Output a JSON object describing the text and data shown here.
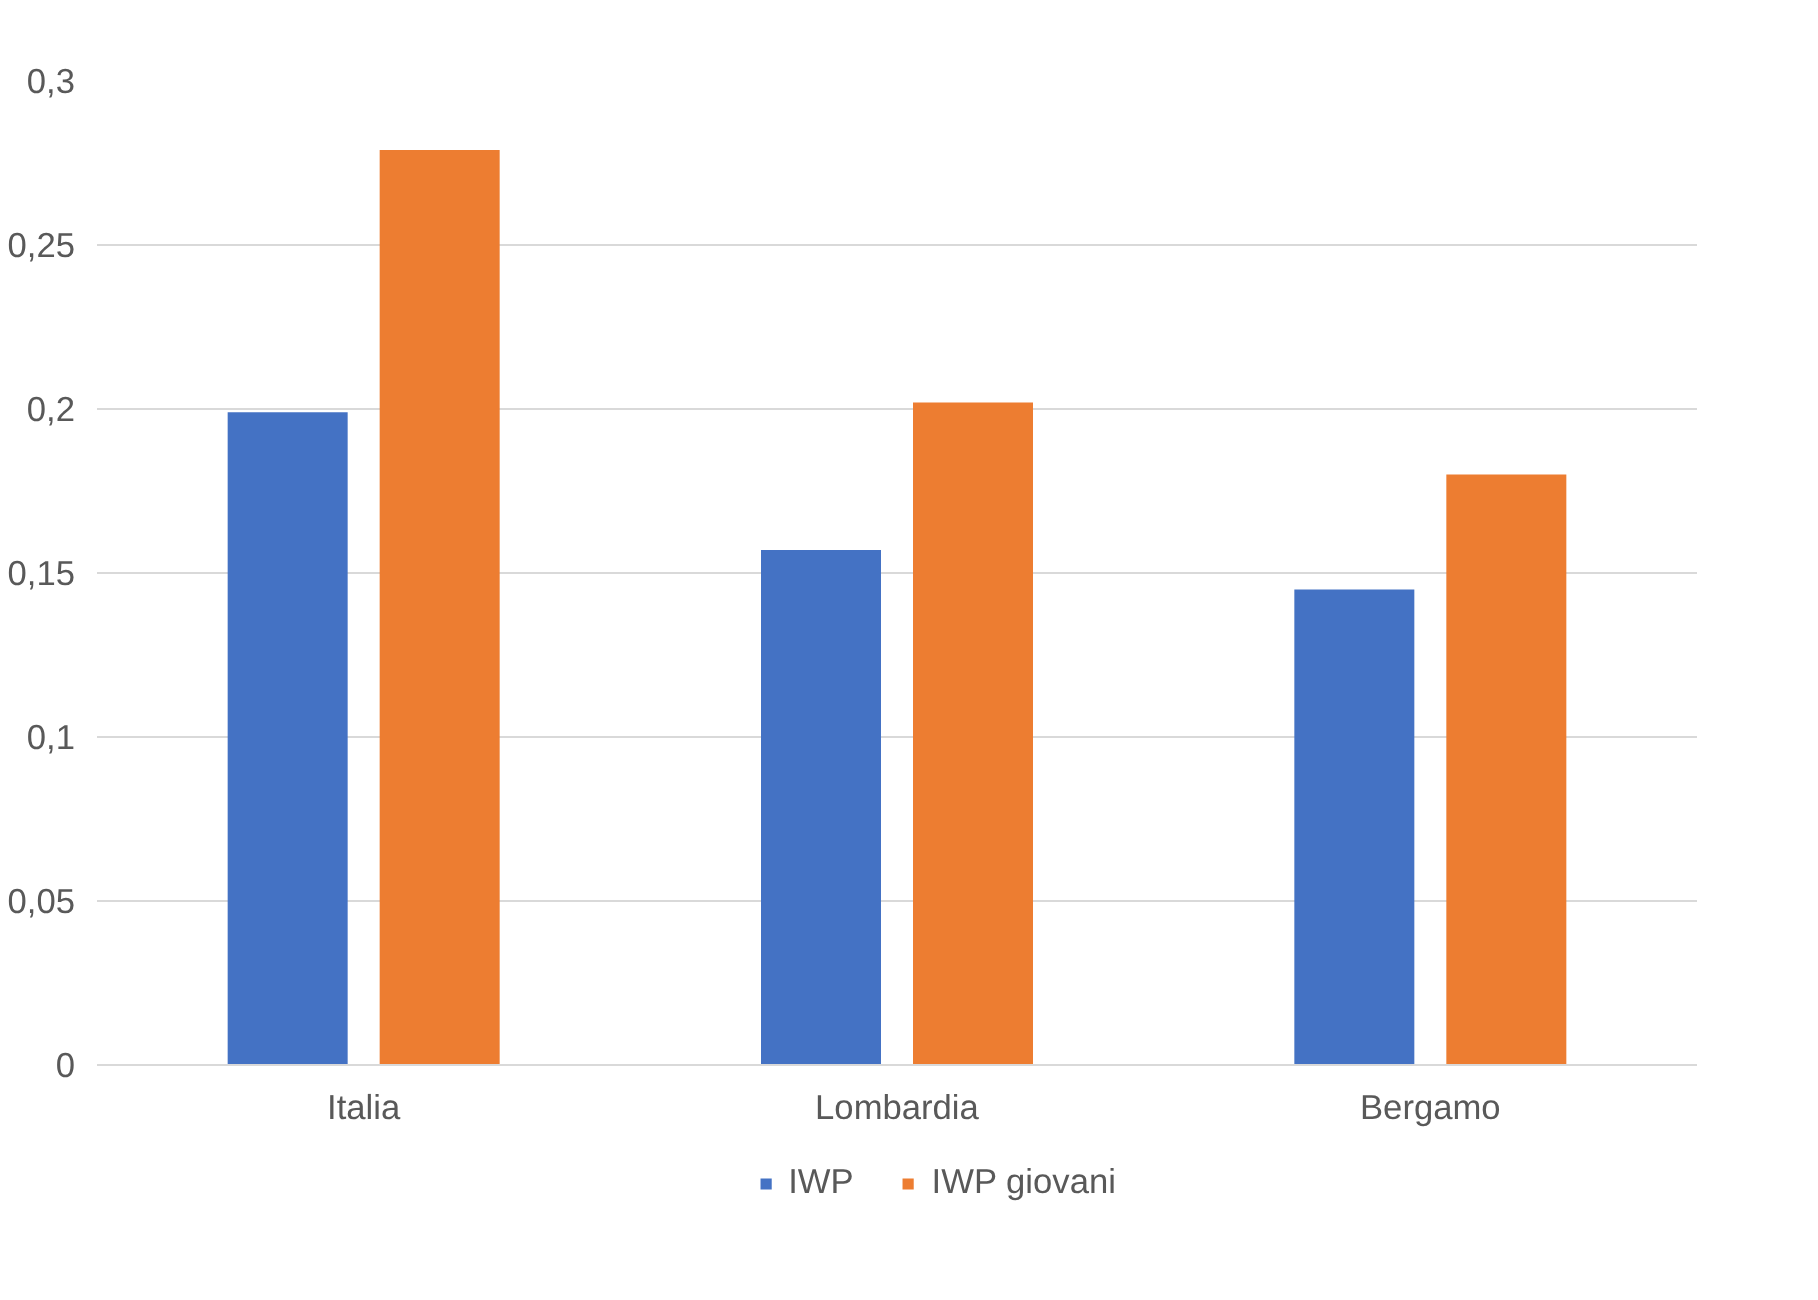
{
  "chart_data": {
    "type": "bar",
    "categories": [
      "Italia",
      "Lombardia",
      "Bergamo"
    ],
    "series": [
      {
        "name": "IWP",
        "color": "#4472c4",
        "values": [
          0.199,
          0.157,
          0.145
        ]
      },
      {
        "name": "IWP giovani",
        "color": "#ed7d31",
        "values": [
          0.279,
          0.202,
          0.18
        ]
      }
    ],
    "ylim": [
      0,
      0.3
    ],
    "yticks": [
      0,
      {
        "value": 0.05,
        "label": "0,05"
      },
      {
        "value": 0.1,
        "label": "0,1"
      },
      {
        "value": 0.15,
        "label": "0,15"
      },
      {
        "value": 0.2,
        "label": "0,2"
      },
      {
        "value": 0.25,
        "label": "0,25"
      },
      {
        "value": 0.3,
        "label": "0,3"
      }
    ],
    "grid": "y",
    "legend": "bottom"
  }
}
